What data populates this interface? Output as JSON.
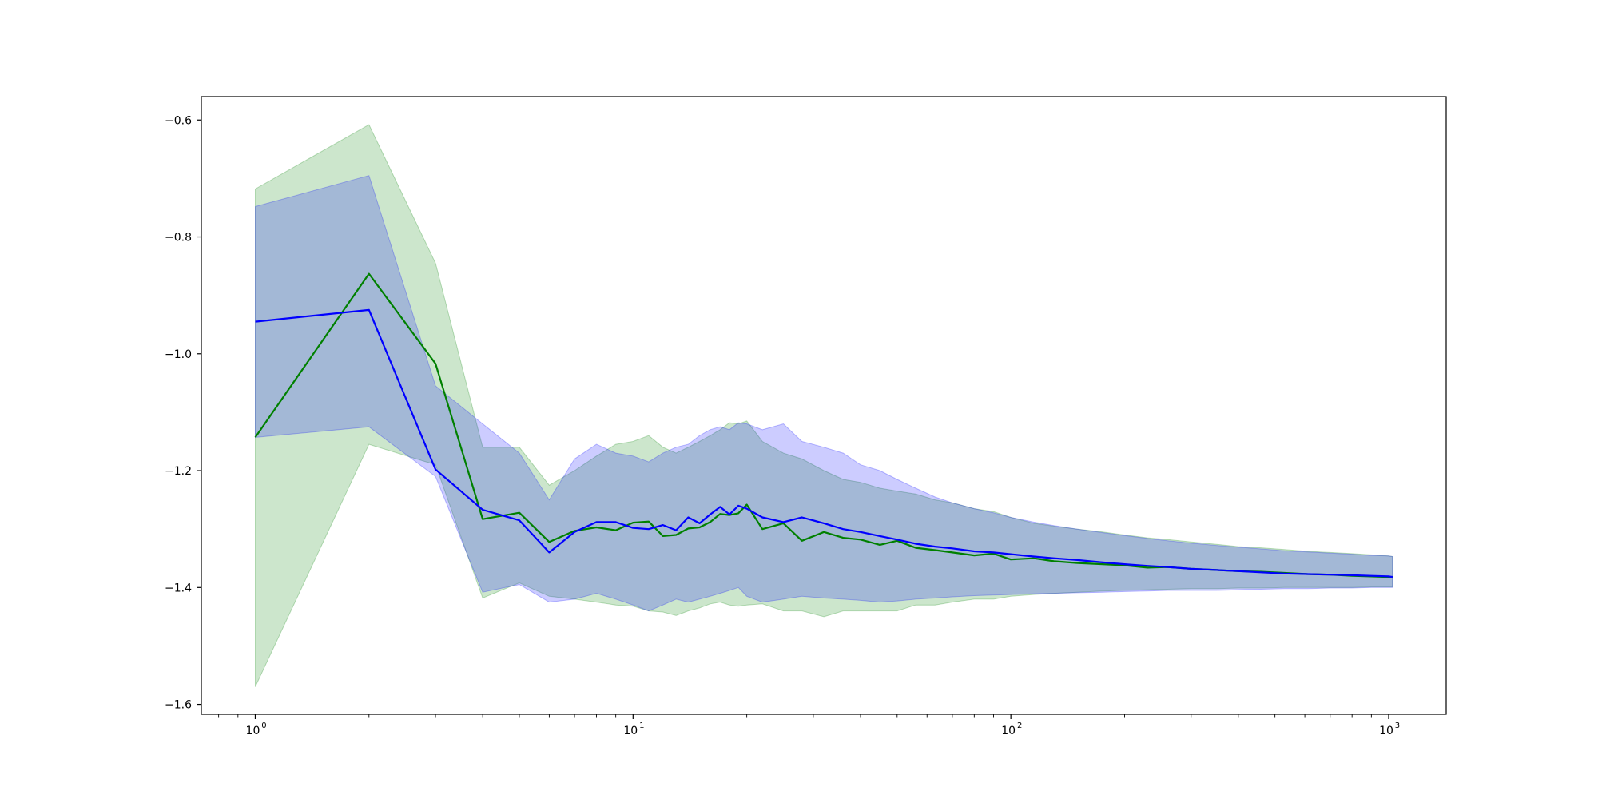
{
  "chart_data": {
    "type": "line",
    "title": "",
    "xlabel": "",
    "ylabel": "",
    "xscale": "log",
    "xlim": [
      0.72,
      1420
    ],
    "ylim": [
      -1.617,
      -0.56
    ],
    "grid": false,
    "legend": "none",
    "x_ticks": [
      {
        "value": 1,
        "label": "10",
        "exp": "0"
      },
      {
        "value": 10,
        "label": "10",
        "exp": "1"
      },
      {
        "value": 100,
        "label": "10",
        "exp": "2"
      },
      {
        "value": 1000,
        "label": "10",
        "exp": "3"
      }
    ],
    "y_ticks": [
      {
        "value": -0.6,
        "label": "−0.6"
      },
      {
        "value": -0.8,
        "label": "−0.8"
      },
      {
        "value": -1.0,
        "label": "−1.0"
      },
      {
        "value": -1.2,
        "label": "−1.2"
      },
      {
        "value": -1.4,
        "label": "−1.4"
      },
      {
        "value": -1.6,
        "label": "−1.6"
      }
    ],
    "series": [
      {
        "color": "#008000",
        "band_color": "#008000",
        "x": [
          1,
          2,
          3,
          4,
          5,
          6,
          7,
          8,
          9,
          10,
          11,
          12,
          13,
          14,
          15,
          16,
          17,
          18,
          19,
          20,
          22,
          25,
          28,
          32,
          36,
          40,
          45,
          50,
          56,
          63,
          70,
          80,
          90,
          100,
          115,
          130,
          150,
          175,
          200,
          230,
          260,
          300,
          350,
          400,
          460,
          530,
          610,
          700,
          800,
          900,
          1000,
          1024
        ],
        "values": [
          -1.143,
          -0.863,
          -1.017,
          -1.283,
          -1.272,
          -1.322,
          -1.303,
          -1.297,
          -1.302,
          -1.289,
          -1.287,
          -1.312,
          -1.31,
          -1.299,
          -1.297,
          -1.288,
          -1.274,
          -1.276,
          -1.273,
          -1.258,
          -1.3,
          -1.29,
          -1.32,
          -1.305,
          -1.315,
          -1.318,
          -1.327,
          -1.32,
          -1.332,
          -1.336,
          -1.34,
          -1.345,
          -1.342,
          -1.352,
          -1.35,
          -1.355,
          -1.358,
          -1.36,
          -1.362,
          -1.366,
          -1.365,
          -1.368,
          -1.37,
          -1.372,
          -1.373,
          -1.375,
          -1.377,
          -1.378,
          -1.38,
          -1.381,
          -1.382,
          -1.383
        ],
        "lower": [
          -1.57,
          -1.155,
          -1.19,
          -1.418,
          -1.392,
          -1.415,
          -1.42,
          -1.425,
          -1.43,
          -1.432,
          -1.44,
          -1.442,
          -1.448,
          -1.44,
          -1.435,
          -1.428,
          -1.425,
          -1.43,
          -1.432,
          -1.43,
          -1.428,
          -1.44,
          -1.44,
          -1.45,
          -1.44,
          -1.44,
          -1.44,
          -1.44,
          -1.43,
          -1.43,
          -1.425,
          -1.42,
          -1.42,
          -1.415,
          -1.412,
          -1.41,
          -1.408,
          -1.406,
          -1.405,
          -1.404,
          -1.403,
          -1.402,
          -1.402,
          -1.401,
          -1.401,
          -1.4,
          -1.4,
          -1.4,
          -1.4,
          -1.399,
          -1.399,
          -1.399
        ],
        "upper": [
          -0.718,
          -0.608,
          -0.845,
          -1.16,
          -1.16,
          -1.225,
          -1.2,
          -1.175,
          -1.155,
          -1.15,
          -1.14,
          -1.16,
          -1.17,
          -1.16,
          -1.15,
          -1.14,
          -1.13,
          -1.118,
          -1.12,
          -1.115,
          -1.15,
          -1.17,
          -1.18,
          -1.2,
          -1.215,
          -1.22,
          -1.23,
          -1.235,
          -1.24,
          -1.25,
          -1.255,
          -1.265,
          -1.27,
          -1.28,
          -1.29,
          -1.295,
          -1.3,
          -1.305,
          -1.31,
          -1.315,
          -1.318,
          -1.322,
          -1.326,
          -1.33,
          -1.332,
          -1.335,
          -1.338,
          -1.34,
          -1.342,
          -1.344,
          -1.346,
          -1.347
        ]
      },
      {
        "color": "#0000ff",
        "band_color": "#0000ff",
        "x": [
          1,
          2,
          3,
          4,
          5,
          6,
          7,
          8,
          9,
          10,
          11,
          12,
          13,
          14,
          15,
          16,
          17,
          18,
          19,
          20,
          22,
          25,
          28,
          32,
          36,
          40,
          45,
          50,
          56,
          63,
          70,
          80,
          90,
          100,
          115,
          130,
          150,
          175,
          200,
          230,
          260,
          300,
          350,
          400,
          460,
          530,
          610,
          700,
          800,
          900,
          1000,
          1024
        ],
        "values": [
          -0.945,
          -0.925,
          -1.198,
          -1.267,
          -1.285,
          -1.34,
          -1.305,
          -1.288,
          -1.288,
          -1.298,
          -1.3,
          -1.293,
          -1.302,
          -1.28,
          -1.29,
          -1.275,
          -1.262,
          -1.275,
          -1.26,
          -1.265,
          -1.28,
          -1.288,
          -1.28,
          -1.29,
          -1.3,
          -1.305,
          -1.312,
          -1.318,
          -1.325,
          -1.33,
          -1.333,
          -1.338,
          -1.34,
          -1.343,
          -1.347,
          -1.35,
          -1.353,
          -1.357,
          -1.36,
          -1.363,
          -1.365,
          -1.368,
          -1.37,
          -1.372,
          -1.374,
          -1.376,
          -1.377,
          -1.378,
          -1.379,
          -1.38,
          -1.381,
          -1.382
        ],
        "lower": [
          -1.143,
          -1.125,
          -1.21,
          -1.408,
          -1.395,
          -1.425,
          -1.42,
          -1.41,
          -1.42,
          -1.43,
          -1.44,
          -1.43,
          -1.42,
          -1.425,
          -1.42,
          -1.415,
          -1.41,
          -1.405,
          -1.4,
          -1.415,
          -1.425,
          -1.42,
          -1.415,
          -1.418,
          -1.42,
          -1.422,
          -1.425,
          -1.423,
          -1.42,
          -1.418,
          -1.416,
          -1.414,
          -1.413,
          -1.412,
          -1.411,
          -1.41,
          -1.409,
          -1.408,
          -1.407,
          -1.406,
          -1.405,
          -1.405,
          -1.405,
          -1.404,
          -1.403,
          -1.402,
          -1.402,
          -1.401,
          -1.401,
          -1.4,
          -1.4,
          -1.4
        ],
        "upper": [
          -0.748,
          -0.695,
          -1.055,
          -1.12,
          -1.17,
          -1.25,
          -1.18,
          -1.155,
          -1.17,
          -1.175,
          -1.185,
          -1.17,
          -1.16,
          -1.155,
          -1.14,
          -1.13,
          -1.125,
          -1.13,
          -1.118,
          -1.12,
          -1.13,
          -1.12,
          -1.15,
          -1.16,
          -1.17,
          -1.19,
          -1.2,
          -1.215,
          -1.23,
          -1.245,
          -1.255,
          -1.265,
          -1.272,
          -1.28,
          -1.288,
          -1.294,
          -1.3,
          -1.306,
          -1.311,
          -1.316,
          -1.32,
          -1.324,
          -1.328,
          -1.331,
          -1.334,
          -1.337,
          -1.339,
          -1.341,
          -1.343,
          -1.345,
          -1.346,
          -1.347
        ]
      }
    ]
  }
}
